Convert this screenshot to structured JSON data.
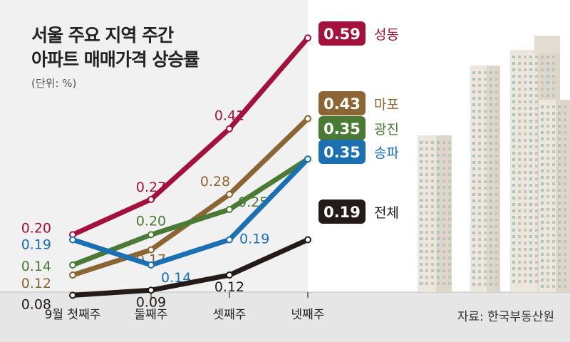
{
  "chart_data": {
    "type": "line",
    "title": "서울 주요 지역 주간 아파트 매매가격 상승률",
    "title_line1": "서울 주요 지역 주간",
    "title_line2": "아파트 매매가격 상승률",
    "unit": "(단위: %)",
    "source": "자료: 한국부동산원",
    "categories": [
      "9월 첫째주",
      "둘째주",
      "셋째주",
      "넷째주"
    ],
    "ylim": [
      0.0,
      0.66
    ],
    "grid": false,
    "series": [
      {
        "name": "성동",
        "color": "#a3123d",
        "values": [
          0.2,
          0.27,
          0.41,
          0.59
        ]
      },
      {
        "name": "마포",
        "color": "#8c6534",
        "values": [
          0.12,
          0.17,
          0.28,
          0.43
        ]
      },
      {
        "name": "광진",
        "color": "#4a7a35",
        "values": [
          0.14,
          0.2,
          0.25,
          0.35
        ]
      },
      {
        "name": "송파",
        "color": "#1c6fb1",
        "values": [
          0.19,
          0.14,
          0.19,
          0.35
        ]
      },
      {
        "name": "전체",
        "color": "#241b19",
        "values": [
          0.08,
          0.09,
          0.12,
          0.19
        ]
      }
    ],
    "data_labels": [
      [
        "0.20",
        "0.27",
        "0.41"
      ],
      [
        "0.12",
        "0.17",
        "0.28"
      ],
      [
        "0.14",
        "0.20",
        "0.25"
      ],
      [
        "0.19",
        "0.14",
        "0.19"
      ],
      [
        "0.08",
        "0.09",
        "0.12"
      ]
    ],
    "end_labels": [
      "0.59",
      "0.43",
      "0.35",
      "0.35",
      "0.19"
    ]
  }
}
